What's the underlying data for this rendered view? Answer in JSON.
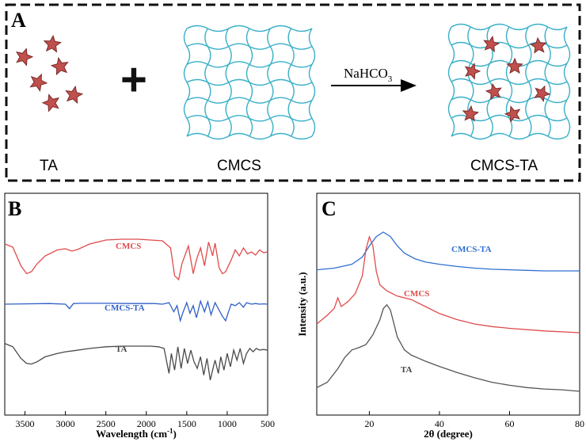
{
  "panel_a": {
    "letter": "A",
    "labels": {
      "ta": "TA",
      "cmcs": "CMCS",
      "product": "CMCS-TA"
    },
    "plus": "+",
    "reagent": "NaHCO",
    "reagent_sub": "3"
  },
  "panel_b": {
    "letter": "B"
  },
  "panel_c": {
    "letter": "C"
  },
  "chart_data": [
    {
      "type": "line",
      "title": "",
      "xlabel": "Wavelength (cm",
      "xlabel_sup": "-1",
      "xlabel_close": ")",
      "ylabel": "",
      "xlim": [
        3750,
        500
      ],
      "xticks": [
        "3500",
        "3000",
        "2500",
        "2000",
        "1500",
        "1000",
        "500"
      ],
      "x_tick_values": [
        3500,
        3000,
        2500,
        2000,
        1500,
        1000,
        500
      ],
      "series": [
        {
          "name": "CMCS",
          "color": "#e04a4a",
          "x": [
            3750,
            3650,
            3550,
            3480,
            3420,
            3350,
            3250,
            3100,
            3000,
            2920,
            2850,
            2700,
            2500,
            2300,
            2100,
            1950,
            1800,
            1700,
            1650,
            1600,
            1560,
            1480,
            1420,
            1380,
            1330,
            1280,
            1230,
            1180,
            1150,
            1100,
            1060,
            1020,
            950,
            900,
            850,
            800,
            750,
            700,
            650,
            600,
            550,
            500
          ],
          "y": [
            0.2,
            0.12,
            -0.35,
            -0.55,
            -0.5,
            -0.3,
            -0.1,
            0.05,
            0.08,
            0.02,
            0.06,
            0.2,
            0.3,
            0.32,
            0.32,
            0.3,
            0.28,
            0.1,
            -0.6,
            -0.7,
            -0.3,
            0.15,
            -0.55,
            -0.2,
            0.1,
            -0.35,
            0.25,
            -0.1,
            0.22,
            -0.4,
            -0.55,
            -0.5,
            -0.2,
            0.05,
            -0.1,
            0.1,
            -0.05,
            0.0,
            -0.08,
            0.05,
            -0.02,
            0.0
          ]
        },
        {
          "name": "CMCS-TA",
          "color": "#2f5fc8",
          "x": [
            3750,
            3500,
            3200,
            3000,
            2950,
            2900,
            2800,
            2500,
            2200,
            1900,
            1800,
            1720,
            1660,
            1620,
            1580,
            1550,
            1500,
            1460,
            1420,
            1380,
            1330,
            1280,
            1240,
            1200,
            1150,
            1100,
            1060,
            1020,
            990,
            950,
            900,
            850,
            800,
            760,
            700,
            650,
            600,
            550,
            500
          ],
          "y": [
            0.0,
            0.01,
            0.02,
            0.0,
            -0.15,
            0.02,
            0.03,
            0.03,
            0.02,
            0.02,
            0.0,
            0.05,
            -0.25,
            -0.05,
            -0.55,
            -0.3,
            0.05,
            -0.3,
            -0.05,
            -0.45,
            0.1,
            -0.25,
            0.08,
            -0.35,
            0.05,
            -0.2,
            -0.4,
            -0.55,
            -0.3,
            0.0,
            -0.05,
            0.05,
            -0.1,
            0.05,
            0.0,
            0.02,
            0.0,
            0.01,
            0.0
          ]
        },
        {
          "name": "TA",
          "color": "#4a4a4a",
          "x": [
            3750,
            3650,
            3550,
            3480,
            3420,
            3350,
            3250,
            3100,
            3000,
            2900,
            2700,
            2500,
            2300,
            2100,
            1950,
            1850,
            1780,
            1720,
            1690,
            1650,
            1610,
            1570,
            1530,
            1490,
            1450,
            1410,
            1370,
            1330,
            1290,
            1250,
            1210,
            1180,
            1150,
            1110,
            1080,
            1040,
            1000,
            960,
            920,
            880,
            840,
            800,
            760,
            720,
            680,
            640,
            600,
            550,
            500
          ],
          "y": [
            0.2,
            0.1,
            -0.25,
            -0.4,
            -0.42,
            -0.35,
            -0.2,
            -0.1,
            -0.05,
            -0.02,
            0.05,
            0.1,
            0.12,
            0.12,
            0.12,
            0.1,
            0.05,
            -0.7,
            -0.1,
            -0.6,
            0.1,
            -0.55,
            0.05,
            -0.4,
            0.0,
            -0.35,
            -0.55,
            -0.2,
            -0.75,
            -0.25,
            -0.9,
            -0.6,
            -0.3,
            -0.7,
            -0.2,
            -0.6,
            -0.1,
            -0.5,
            0.0,
            -0.3,
            0.05,
            -0.4,
            -0.1,
            0.05,
            -0.05,
            0.05,
            0.0,
            0.02,
            0.0
          ]
        }
      ]
    },
    {
      "type": "line",
      "title": "",
      "xlabel": "2θ (degree)",
      "ylabel": "Intensity (a.u.)",
      "xlim": [
        5,
        80
      ],
      "xticks": [
        "20",
        "40",
        "60",
        "80"
      ],
      "x_tick_values": [
        20,
        40,
        60,
        80
      ],
      "series": [
        {
          "name": "CMCS-TA",
          "color": "#2f6fd0",
          "x": [
            5,
            10,
            15,
            18,
            20,
            22,
            24,
            26,
            28,
            30,
            33,
            36,
            40,
            45,
            50,
            55,
            60,
            65,
            70,
            75,
            80
          ],
          "y": [
            0.02,
            0.05,
            0.12,
            0.25,
            0.45,
            0.62,
            0.7,
            0.62,
            0.45,
            0.32,
            0.22,
            0.16,
            0.12,
            0.08,
            0.05,
            0.03,
            0.02,
            0.01,
            0.0,
            0.0,
            0.0
          ]
        },
        {
          "name": "CMCS",
          "color": "#e04a4a",
          "x": [
            5,
            8,
            10,
            11,
            12,
            14,
            16,
            18,
            19,
            20,
            21,
            22,
            23,
            25,
            28,
            32,
            36,
            40,
            45,
            50,
            55,
            60,
            70,
            80
          ],
          "y": [
            0.1,
            0.2,
            0.28,
            0.4,
            0.3,
            0.36,
            0.45,
            0.65,
            0.95,
            1.1,
            1.0,
            0.7,
            0.55,
            0.48,
            0.42,
            0.38,
            0.3,
            0.22,
            0.15,
            0.1,
            0.07,
            0.05,
            0.02,
            0.0
          ]
        },
        {
          "name": "TA",
          "color": "#555555",
          "x": [
            5,
            8,
            11,
            13,
            15,
            17,
            19,
            21,
            23,
            24,
            25,
            26,
            27,
            28,
            30,
            32,
            34,
            36,
            40,
            45,
            50,
            55,
            60,
            65,
            70,
            75,
            80
          ],
          "y": [
            0.05,
            0.12,
            0.3,
            0.45,
            0.55,
            0.58,
            0.62,
            0.75,
            0.95,
            1.1,
            1.15,
            1.08,
            0.9,
            0.72,
            0.55,
            0.48,
            0.44,
            0.4,
            0.33,
            0.25,
            0.18,
            0.12,
            0.08,
            0.05,
            0.03,
            0.02,
            0.0
          ]
        }
      ]
    }
  ]
}
